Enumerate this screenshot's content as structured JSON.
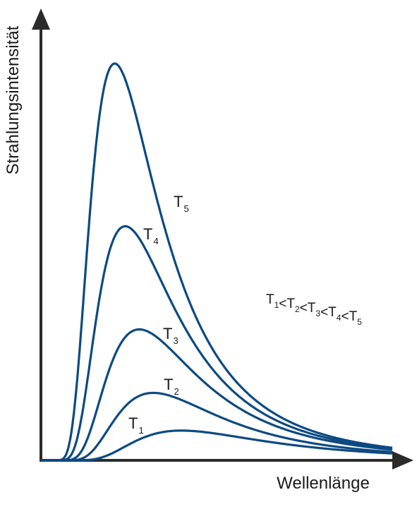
{
  "chart_data": {
    "type": "line",
    "title": "",
    "xlabel": "Wellenlänge",
    "ylabel": "Strahlungsintensität",
    "grid": false,
    "line_color": "#0d4a82",
    "axis_color": "#2b2b2b",
    "annotation": "T1<T2<T3<T4<T5",
    "annotation_parts": [
      {
        "main": "T",
        "sub": "1"
      },
      {
        "main": "<T",
        "sub": "2"
      },
      {
        "main": "<T",
        "sub": "3"
      },
      {
        "main": "<T",
        "sub": "4"
      },
      {
        "main": "<T",
        "sub": "5"
      }
    ],
    "series": [
      {
        "name": "T5",
        "label_main": "T",
        "label_sub": "5",
        "peak_x": 0.21,
        "peak_y": 1.0
      },
      {
        "name": "T4",
        "label_main": "T",
        "label_sub": "4",
        "peak_x": 0.24,
        "peak_y": 0.59
      },
      {
        "name": "T3",
        "label_main": "T",
        "label_sub": "3",
        "peak_x": 0.28,
        "peak_y": 0.33
      },
      {
        "name": "T2",
        "label_main": "T",
        "label_sub": "2",
        "peak_x": 0.32,
        "peak_y": 0.17
      },
      {
        "name": "T1",
        "label_main": "T",
        "label_sub": "1",
        "peak_x": 0.4,
        "peak_y": 0.075
      }
    ]
  }
}
